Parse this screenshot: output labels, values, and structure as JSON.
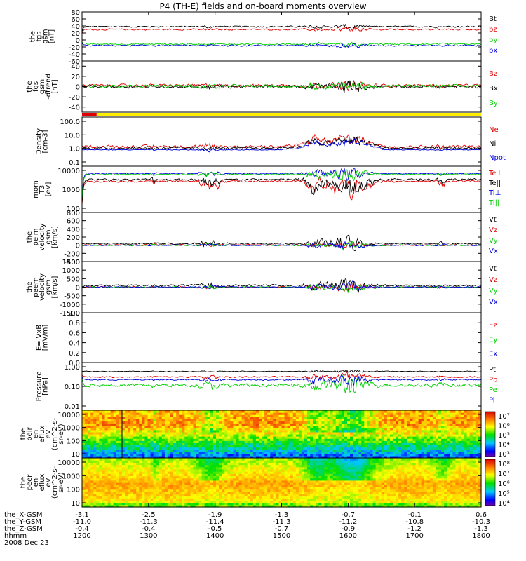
{
  "title": "P4 (TH-E) fields and on-board moments overview",
  "date": "2008 Dec 23",
  "x_axis": {
    "ticks": [
      {
        "hhmm": "1200",
        "x_gsm": "-3.1",
        "y_gsm": "-11.0",
        "z_gsm": "-0.4"
      },
      {
        "hhmm": "1300",
        "x_gsm": "-2.5",
        "y_gsm": "-11.3",
        "z_gsm": "-0.4"
      },
      {
        "hhmm": "1400",
        "x_gsm": "-1.9",
        "y_gsm": "-11.4",
        "z_gsm": "-0.5"
      },
      {
        "hhmm": "1500",
        "x_gsm": "-1.3",
        "y_gsm": "-11.3",
        "z_gsm": "-0.7"
      },
      {
        "hhmm": "1600",
        "x_gsm": "-0.7",
        "y_gsm": "-11.2",
        "z_gsm": "-0.9"
      },
      {
        "hhmm": "1700",
        "x_gsm": "-0.1",
        "y_gsm": "-10.8",
        "z_gsm": "-1.2"
      },
      {
        "hhmm": "1800",
        "x_gsm": "0.6",
        "y_gsm": "-10.3",
        "z_gsm": "-1.3"
      }
    ],
    "row_labels": [
      "the_X-GSM",
      "the_Y-GSM",
      "the_Z-GSM",
      "hhmm"
    ]
  },
  "colors": {
    "black": "#000000",
    "red": "#e00000",
    "green": "#00d000",
    "blue": "#0000e0",
    "yellow": "#ffee00"
  },
  "chart_data": [
    {
      "id": "fgs-gsm",
      "type": "line",
      "ylabel": [
        "the",
        "fgs",
        "gsm",
        "[nT]"
      ],
      "yticks": [
        "80",
        "60",
        "40",
        "20",
        "0",
        "-20",
        "-40",
        "-60"
      ],
      "ylim": [
        -60,
        80
      ],
      "series": [
        {
          "name": "Bt",
          "color": "#000000",
          "base": 38,
          "noise": 3,
          "burst": 10
        },
        {
          "name": "bz",
          "color": "#e00000",
          "base": 30,
          "noise": 3,
          "burst": 12
        },
        {
          "name": "by",
          "color": "#00d000",
          "base": -12,
          "noise": 3,
          "burst": 10
        },
        {
          "name": "bx",
          "color": "#0000e0",
          "base": -16,
          "noise": 3,
          "burst": 10
        }
      ]
    },
    {
      "id": "fgs-gsm-dtrend",
      "type": "line",
      "ylabel": [
        "the",
        "fgs",
        "gsm",
        "-dtrend",
        "[nT]"
      ],
      "yticks": [
        "40",
        "20",
        "0",
        "-20",
        "-40"
      ],
      "ylim": [
        -50,
        50
      ],
      "series": [
        {
          "name": "Bz",
          "color": "#e00000",
          "base": 2,
          "noise": 4,
          "burst": 14
        },
        {
          "name": "Bx",
          "color": "#000000",
          "base": 0,
          "noise": 4,
          "burst": 18
        },
        {
          "name": "By",
          "color": "#00d000",
          "base": 1,
          "noise": 4,
          "burst": 16
        }
      ]
    },
    {
      "id": "mode-bar",
      "type": "bar",
      "segments": [
        {
          "from": 1200,
          "to": 1222,
          "color": "#e00000"
        },
        {
          "from": 1222,
          "to": 1800,
          "color": "#ffee00"
        }
      ]
    },
    {
      "id": "density",
      "type": "line",
      "scale": "log",
      "ylabel": [
        "Density",
        "[cm-3]"
      ],
      "yticks": [
        "100.0",
        "10.0",
        "1.0",
        "0.1"
      ],
      "ylim": [
        0.1,
        100
      ],
      "series": [
        {
          "name": "Ne",
          "color": "#e00000",
          "base": 0.2,
          "noise": 0.12,
          "burst": 0.6
        },
        {
          "name": "Ni",
          "color": "#000000",
          "base": 0.1,
          "noise": 0.1,
          "burst": 0.55
        },
        {
          "name": "Npot",
          "color": "#0000e0",
          "base": 0.0,
          "noise": 0.03,
          "burst": 0.4
        }
      ]
    },
    {
      "id": "temperature",
      "type": "line",
      "scale": "log",
      "ylabel": [
        "mom",
        "T3",
        "[eV]"
      ],
      "yticks": [
        "10000",
        "1000",
        "100"
      ],
      "ylim": [
        30,
        15000
      ],
      "series": [
        {
          "name": "Te⊥",
          "color": "#e00000",
          "base": 3.3,
          "noise": 0.08,
          "burst": 0.8
        },
        {
          "name": "Te||",
          "color": "#000000",
          "base": 3.4,
          "noise": 0.08,
          "burst": 0.8
        },
        {
          "name": "Ti⊥",
          "color": "#0000e0",
          "base": 3.75,
          "noise": 0.05,
          "burst": 0.6
        },
        {
          "name": "Ti||",
          "color": "#00d000",
          "base": 3.7,
          "noise": 0.05,
          "burst": 0.6
        }
      ]
    },
    {
      "id": "peim-velocity",
      "type": "line",
      "ylabel": [
        "the",
        "peim",
        "velocity",
        "gsm",
        "[km/s]"
      ],
      "yticks": [
        "800",
        "600",
        "400",
        "200",
        "0",
        "-200",
        "-400"
      ],
      "ylim": [
        -400,
        800
      ],
      "series": [
        {
          "name": "Vt",
          "color": "#000000",
          "base": 40,
          "noise": 25,
          "burst": 300
        },
        {
          "name": "Vz",
          "color": "#e00000",
          "base": 5,
          "noise": 20,
          "burst": 120
        },
        {
          "name": "Vy",
          "color": "#00d000",
          "base": 0,
          "noise": 20,
          "burst": 150
        },
        {
          "name": "Vx",
          "color": "#0000e0",
          "base": 0,
          "noise": 20,
          "burst": 150
        }
      ]
    },
    {
      "id": "peem-velocity",
      "type": "line",
      "ylabel": [
        "the",
        "peem",
        "velocity",
        "gsm",
        "[km/s]"
      ],
      "yticks": [
        "1500",
        "1000",
        "500",
        "0",
        "-500",
        "-1000",
        "-1500"
      ],
      "ylim": [
        -1500,
        1500
      ],
      "series": [
        {
          "name": "Vt",
          "color": "#000000",
          "base": 100,
          "noise": 80,
          "burst": 700
        },
        {
          "name": "Vz",
          "color": "#e00000",
          "base": 0,
          "noise": 60,
          "burst": 400
        },
        {
          "name": "Vy",
          "color": "#00d000",
          "base": 0,
          "noise": 60,
          "burst": 450
        },
        {
          "name": "Vx",
          "color": "#0000e0",
          "base": 0,
          "noise": 60,
          "burst": 450
        }
      ]
    },
    {
      "id": "efield",
      "type": "line",
      "ylabel": [
        "E=-VxB",
        "[mV/m]"
      ],
      "yticks": [
        "1.0",
        "0.8",
        "0.6",
        "0.4",
        "0.2",
        "0.0"
      ],
      "ylim": [
        0,
        1
      ],
      "series": [
        {
          "name": "Ez",
          "color": "#e00000"
        },
        {
          "name": "Ey",
          "color": "#00d000"
        },
        {
          "name": "Ex",
          "color": "#0000e0"
        }
      ]
    },
    {
      "id": "pressure",
      "type": "line",
      "scale": "log",
      "ylabel": [
        "Pressure",
        "[nPa]"
      ],
      "yticks": [
        "1.00",
        "0.10",
        "0.01"
      ],
      "ylim": [
        0.008,
        3
      ],
      "series": [
        {
          "name": "Pt",
          "color": "#000000",
          "base": 0.0,
          "noise": 0.03,
          "burst": 0.12
        },
        {
          "name": "Pb",
          "color": "#e00000",
          "base": -0.3,
          "noise": 0.05,
          "burst": 0.4
        },
        {
          "name": "Pe",
          "color": "#00d000",
          "base": -0.75,
          "noise": 0.12,
          "burst": 0.9
        },
        {
          "name": "Pi",
          "color": "#0000e0",
          "base": -0.45,
          "noise": 0.05,
          "burst": 0.5
        }
      ]
    },
    {
      "id": "peir-spectrogram",
      "type": "heatmap",
      "ylabel": [
        "the",
        "peir",
        "en",
        "eflux",
        "eV",
        "(cm^2-s-",
        "sr-eV)"
      ],
      "yticks": [
        "10000",
        "1000",
        "100",
        "10"
      ],
      "colorbar_ticks": [
        "10⁷",
        "10⁶",
        "10⁵",
        "10⁴",
        "10³"
      ]
    },
    {
      "id": "peer-spectrogram",
      "type": "heatmap",
      "ylabel": [
        "the",
        "peer",
        "en",
        "eflux",
        "eV",
        "(cm^2-s-",
        "sr-eV)"
      ],
      "yticks": [
        "10000",
        "1000",
        "100",
        "10"
      ],
      "colorbar_ticks": [
        "10⁸",
        "10⁷",
        "10⁶",
        "10⁵",
        "10⁴"
      ]
    }
  ]
}
